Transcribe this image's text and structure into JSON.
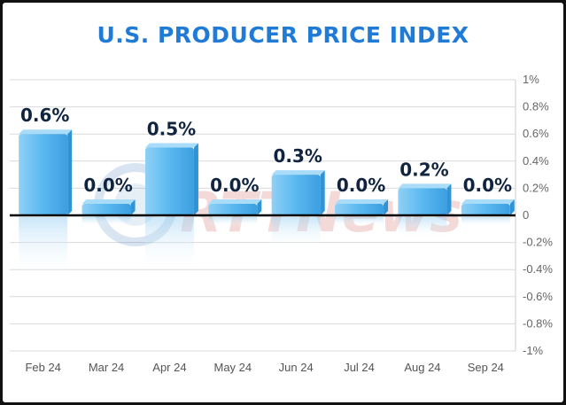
{
  "title": "U.S. PRODUCER PRICE INDEX",
  "watermark": "RTTNews",
  "colors": {
    "title": "#1f7bd6",
    "bar_top": "#a8dcf9",
    "bar_front": "#56b5ef",
    "bar_side": "#2f94d6",
    "data_label": "#10243f",
    "grid": "#d9d9d9",
    "zero_line": "#000000"
  },
  "chart_data": {
    "type": "bar",
    "title": "U.S. PRODUCER PRICE INDEX",
    "categories": [
      "Feb 24",
      "Mar 24",
      "Apr 24",
      "May 24",
      "Jun 24",
      "Jul 24",
      "Aug 24",
      "Sep 24"
    ],
    "values": [
      0.6,
      0.0,
      0.5,
      0.0,
      0.3,
      0.0,
      0.2,
      0.0
    ],
    "data_labels": [
      "0.6%",
      "0.0%",
      "0.5%",
      "0.0%",
      "0.3%",
      "0.0%",
      "0.2%",
      "0.0%"
    ],
    "y_ticks": [
      1,
      0.8,
      0.6,
      0.4,
      0.2,
      0,
      -0.2,
      -0.4,
      -0.6,
      -0.8,
      -1
    ],
    "y_tick_labels": [
      "1%",
      "0.8%",
      "0.6%",
      "0.4%",
      "0.2%",
      "0",
      "-0.2%",
      "-0.4%",
      "-0.6%",
      "-0.8%",
      "-1%"
    ],
    "ylim": [
      -1,
      1
    ],
    "yaxis_position": "right",
    "grid": true,
    "xlabel": "",
    "ylabel": ""
  }
}
